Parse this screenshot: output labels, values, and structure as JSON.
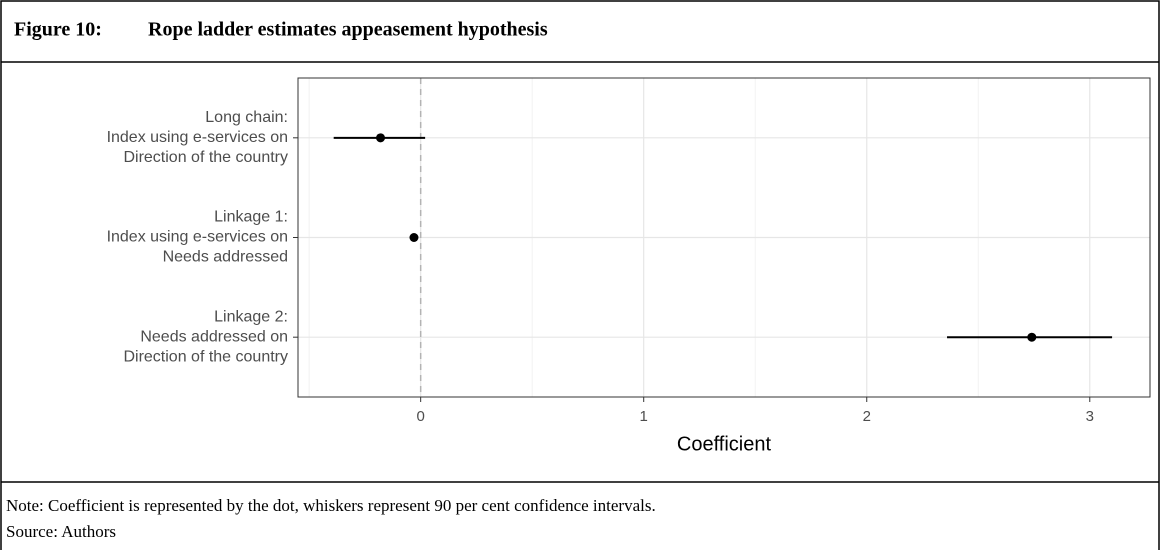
{
  "figure_label": "Figure 10:",
  "chart_data": {
    "type": "dot-whisker",
    "title": "Rope ladder estimates appeasement hypothesis",
    "x_label": "Coefficient",
    "categories": [
      [
        "Long chain:",
        "Index using e-services on",
        "Direction of the country"
      ],
      [
        "Linkage 1:",
        "Index using e-services on",
        "Needs addressed"
      ],
      [
        "Linkage 2:",
        "Needs addressed on",
        "Direction of the country"
      ]
    ],
    "values": [
      -0.18,
      -0.03,
      2.74
    ],
    "lower": [
      -0.39,
      -0.04,
      2.36
    ],
    "upper": [
      0.02,
      -0.02,
      3.1
    ],
    "color": "#000000",
    "xlim": [
      -0.55,
      3.27
    ],
    "xticks": [
      0,
      1,
      2,
      3
    ],
    "xminor_ticks": [
      -0.5,
      0.5,
      1.5,
      2.5
    ],
    "reference_line": 0,
    "grid": true
  },
  "note": "Note: Coefficient is represented by the dot, whiskers represent 90 per cent confidence intervals.",
  "source": "Source: Authors"
}
